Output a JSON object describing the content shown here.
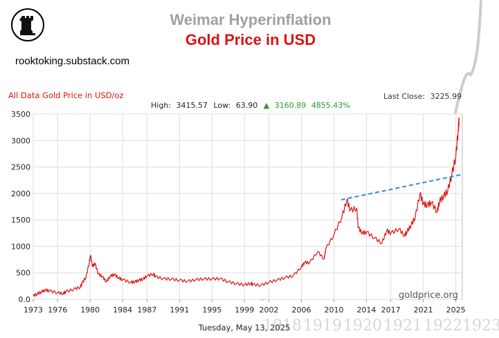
{
  "brand": {
    "site": "rooktoking.substack.com",
    "logo_icon": "rook-chess-icon"
  },
  "overlay": {
    "title": "Weimar Hyperinflation",
    "title_color": "#a0a0a0",
    "subtitle": "Gold Price in USD",
    "subtitle_color": "#e01010",
    "overlay_x_labels": [
      "1918",
      "1919",
      "1920",
      "1921",
      "1922",
      "1923"
    ],
    "overlay_line_color": "#cccccc"
  },
  "chart_data": {
    "type": "line",
    "title": "All Data Gold Price in USD/oz",
    "title_color": "#e01010",
    "stats": {
      "high_label": "High:",
      "high": "3415.57",
      "low_label": "Low:",
      "low": "63.90",
      "change_arrow": "▲",
      "change": "3160.89",
      "change_pct": "4855.43%",
      "change_color": "#2a9a2a"
    },
    "last_close_label": "Last Close:",
    "last_close": "3225.99",
    "date": "Tuesday, May 13, 2025",
    "watermark": "goldprice.org",
    "line_color": "#e01010",
    "trend_color": "#2a8ddc",
    "xlim": [
      1973,
      2025.8
    ],
    "ylim": [
      0,
      3500
    ],
    "x_ticks": [
      1973,
      1976,
      1980,
      1984,
      1987,
      1991,
      1995,
      1999,
      2002,
      2006,
      2010,
      2014,
      2017,
      2021,
      2025
    ],
    "x_tick_labels": [
      "1973",
      "1976",
      "1980",
      "1984",
      "1987",
      "1991",
      "1995",
      "1999",
      "2002",
      "2006",
      "2010",
      "2014",
      "2017",
      "2021",
      "2025"
    ],
    "y_ticks": [
      0,
      500,
      1000,
      1500,
      2000,
      2500,
      3000,
      3500
    ],
    "y_tick_labels": [
      "0.0",
      "500",
      "1000",
      "1500",
      "2000",
      "2500",
      "3000",
      "3500"
    ],
    "series": [
      {
        "name": "Gold Price USD/oz",
        "x": [
          1973,
          1973.5,
          1974,
          1974.5,
          1975,
          1976,
          1976.7,
          1977,
          1978,
          1978.8,
          1979,
          1979.5,
          1979.9,
          1980.05,
          1980.3,
          1980.6,
          1981,
          1981.5,
          1982,
          1982.5,
          1983,
          1983.5,
          1984,
          1985,
          1985.5,
          1986,
          1986.5,
          1987,
          1987.8,
          1988,
          1989,
          1990,
          1991,
          1992,
          1993,
          1994,
          1995,
          1996,
          1997,
          1998,
          1999,
          1999.8,
          2000,
          2001,
          2002,
          2003,
          2004,
          2005,
          2006,
          2006.4,
          2007,
          2008,
          2008.8,
          2009,
          2010,
          2011,
          2011.6,
          2012,
          2012.8,
          2013,
          2013.5,
          2014,
          2015,
          2015.9,
          2016.5,
          2017,
          2018,
          2018.7,
          2019,
          2019.5,
          2020,
          2020.6,
          2021,
          2021.5,
          2022,
          2022.7,
          2023,
          2023.5,
          2024,
          2024.5,
          2025,
          2025.3,
          2025.4
        ],
        "y": [
          65,
          100,
          140,
          175,
          160,
          125,
          105,
          145,
          190,
          230,
          300,
          420,
          700,
          830,
          620,
          680,
          480,
          430,
          330,
          440,
          470,
          400,
          370,
          320,
          330,
          360,
          380,
          440,
          480,
          430,
          390,
          380,
          360,
          340,
          370,
          385,
          385,
          390,
          330,
          295,
          275,
          300,
          280,
          265,
          320,
          365,
          410,
          445,
          610,
          700,
          690,
          900,
          760,
          950,
          1220,
          1560,
          1880,
          1680,
          1720,
          1350,
          1250,
          1270,
          1160,
          1060,
          1300,
          1250,
          1330,
          1200,
          1280,
          1400,
          1550,
          2000,
          1800,
          1780,
          1830,
          1650,
          1850,
          1950,
          2050,
          2350,
          2700,
          3200,
          3415
        ]
      },
      {
        "name": "Trend",
        "x": [
          2010.9,
          2025.8
        ],
        "y": [
          1880,
          2360
        ]
      }
    ]
  }
}
